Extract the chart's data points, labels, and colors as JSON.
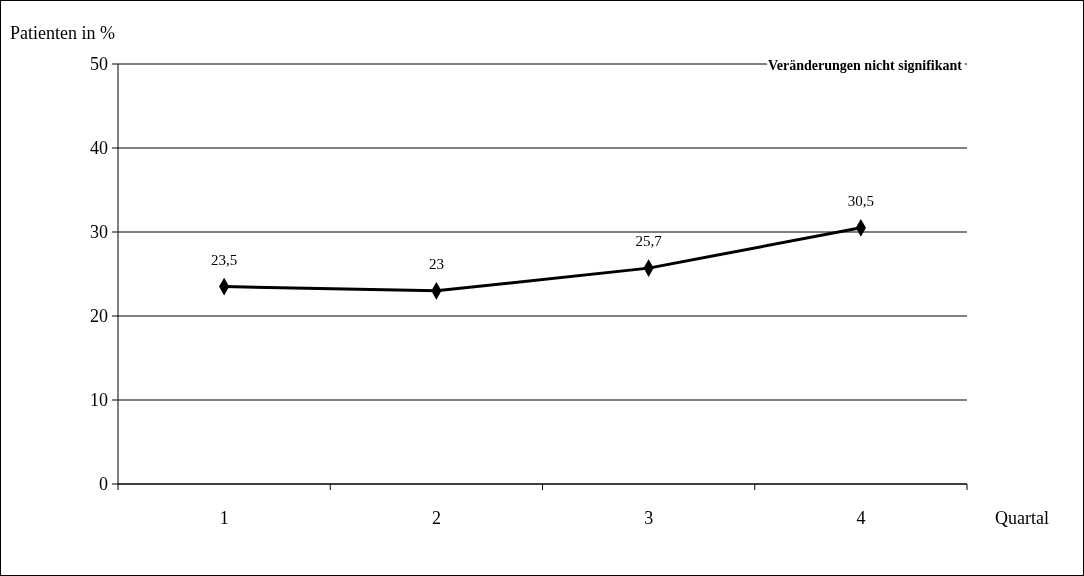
{
  "chart_data": {
    "type": "line",
    "ylabel": "Patienten in %",
    "xlabel": "Quartal",
    "annotations": [
      "Veränderungen nicht signifikant"
    ],
    "categories": [
      "1",
      "2",
      "3",
      "4"
    ],
    "series": [
      {
        "color": "#000000",
        "values": [
          23.5,
          23,
          25.7,
          30.5
        ],
        "value_labels": [
          "23,5",
          "23",
          "25,7",
          "30,5"
        ]
      }
    ],
    "ylim": [
      0,
      50
    ],
    "yticks": [
      0,
      10,
      20,
      30,
      40,
      50
    ],
    "grid": "y",
    "marker": "diamond",
    "line_style": "solid"
  }
}
